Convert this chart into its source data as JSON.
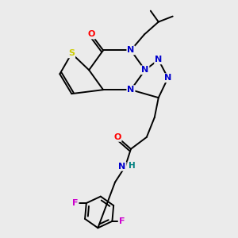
{
  "bg_color": "#ebebeb",
  "atom_colors": {
    "S": "#cccc00",
    "N": "#0000cc",
    "O": "#ff0000",
    "F": "#cc00cc",
    "C": "#000000",
    "H": "#008080"
  },
  "figsize": [
    3.0,
    3.0
  ],
  "dpi": 100,
  "lw": 1.4
}
